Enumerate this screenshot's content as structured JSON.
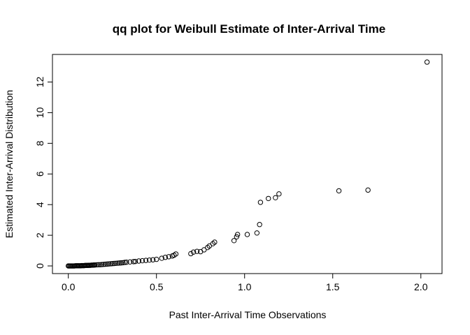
{
  "chart_data": {
    "type": "scatter",
    "title": "qq plot for Weibull Estimate of Inter-Arrival Time",
    "xlabel": "Past Inter-Arrival Time Observations",
    "ylabel": "Estimated Inter-Arrival Distribution",
    "xlim": [
      -0.09,
      2.12
    ],
    "ylim": [
      -0.5,
      13.8
    ],
    "xticks": [
      {
        "value": 0.0,
        "label": "0.0"
      },
      {
        "value": 0.5,
        "label": "0.5"
      },
      {
        "value": 1.0,
        "label": "1.0"
      },
      {
        "value": 1.5,
        "label": "1.5"
      },
      {
        "value": 2.0,
        "label": "2.0"
      }
    ],
    "yticks": [
      {
        "value": 0,
        "label": "0"
      },
      {
        "value": 2,
        "label": "2"
      },
      {
        "value": 4,
        "label": "4"
      },
      {
        "value": 6,
        "label": "6"
      },
      {
        "value": 8,
        "label": "8"
      },
      {
        "value": 10,
        "label": "10"
      },
      {
        "value": 12,
        "label": "12"
      }
    ],
    "grid": false,
    "marker": "open-circle",
    "points": [
      [
        0.0,
        0.0
      ],
      [
        0.005,
        0.0
      ],
      [
        0.01,
        0.0
      ],
      [
        0.015,
        0.0
      ],
      [
        0.02,
        0.0
      ],
      [
        0.025,
        0.0
      ],
      [
        0.03,
        0.0
      ],
      [
        0.035,
        0.0
      ],
      [
        0.04,
        0.01
      ],
      [
        0.045,
        0.01
      ],
      [
        0.05,
        0.01
      ],
      [
        0.055,
        0.01
      ],
      [
        0.06,
        0.01
      ],
      [
        0.065,
        0.01
      ],
      [
        0.07,
        0.01
      ],
      [
        0.075,
        0.02
      ],
      [
        0.08,
        0.02
      ],
      [
        0.085,
        0.02
      ],
      [
        0.09,
        0.02
      ],
      [
        0.095,
        0.03
      ],
      [
        0.1,
        0.03
      ],
      [
        0.105,
        0.03
      ],
      [
        0.11,
        0.03
      ],
      [
        0.115,
        0.04
      ],
      [
        0.12,
        0.04
      ],
      [
        0.125,
        0.04
      ],
      [
        0.13,
        0.05
      ],
      [
        0.135,
        0.05
      ],
      [
        0.14,
        0.05
      ],
      [
        0.145,
        0.06
      ],
      [
        0.15,
        0.06
      ],
      [
        0.16,
        0.07
      ],
      [
        0.17,
        0.08
      ],
      [
        0.18,
        0.08
      ],
      [
        0.19,
        0.09
      ],
      [
        0.2,
        0.1
      ],
      [
        0.21,
        0.11
      ],
      [
        0.22,
        0.12
      ],
      [
        0.23,
        0.13
      ],
      [
        0.24,
        0.14
      ],
      [
        0.25,
        0.15
      ],
      [
        0.26,
        0.16
      ],
      [
        0.27,
        0.17
      ],
      [
        0.28,
        0.18
      ],
      [
        0.29,
        0.19
      ],
      [
        0.3,
        0.2
      ],
      [
        0.31,
        0.21
      ],
      [
        0.32,
        0.23
      ],
      [
        0.33,
        0.24
      ],
      [
        0.35,
        0.26
      ],
      [
        0.37,
        0.28
      ],
      [
        0.38,
        0.29
      ],
      [
        0.4,
        0.32
      ],
      [
        0.42,
        0.34
      ],
      [
        0.44,
        0.36
      ],
      [
        0.46,
        0.38
      ],
      [
        0.48,
        0.4
      ],
      [
        0.5,
        0.43
      ],
      [
        0.53,
        0.5
      ],
      [
        0.55,
        0.56
      ],
      [
        0.57,
        0.6
      ],
      [
        0.59,
        0.65
      ],
      [
        0.6,
        0.7
      ],
      [
        0.61,
        0.78
      ],
      [
        0.695,
        0.8
      ],
      [
        0.71,
        0.9
      ],
      [
        0.73,
        0.95
      ],
      [
        0.75,
        0.93
      ],
      [
        0.77,
        1.05
      ],
      [
        0.79,
        1.2
      ],
      [
        0.8,
        1.3
      ],
      [
        0.82,
        1.45
      ],
      [
        0.83,
        1.55
      ],
      [
        0.94,
        1.65
      ],
      [
        0.955,
        1.9
      ],
      [
        0.96,
        2.05
      ],
      [
        1.015,
        2.05
      ],
      [
        1.07,
        2.15
      ],
      [
        1.085,
        2.7
      ],
      [
        1.09,
        4.15
      ],
      [
        1.135,
        4.4
      ],
      [
        1.175,
        4.45
      ],
      [
        1.195,
        4.7
      ],
      [
        1.535,
        4.9
      ],
      [
        1.7,
        4.95
      ],
      [
        2.035,
        13.3
      ]
    ]
  }
}
